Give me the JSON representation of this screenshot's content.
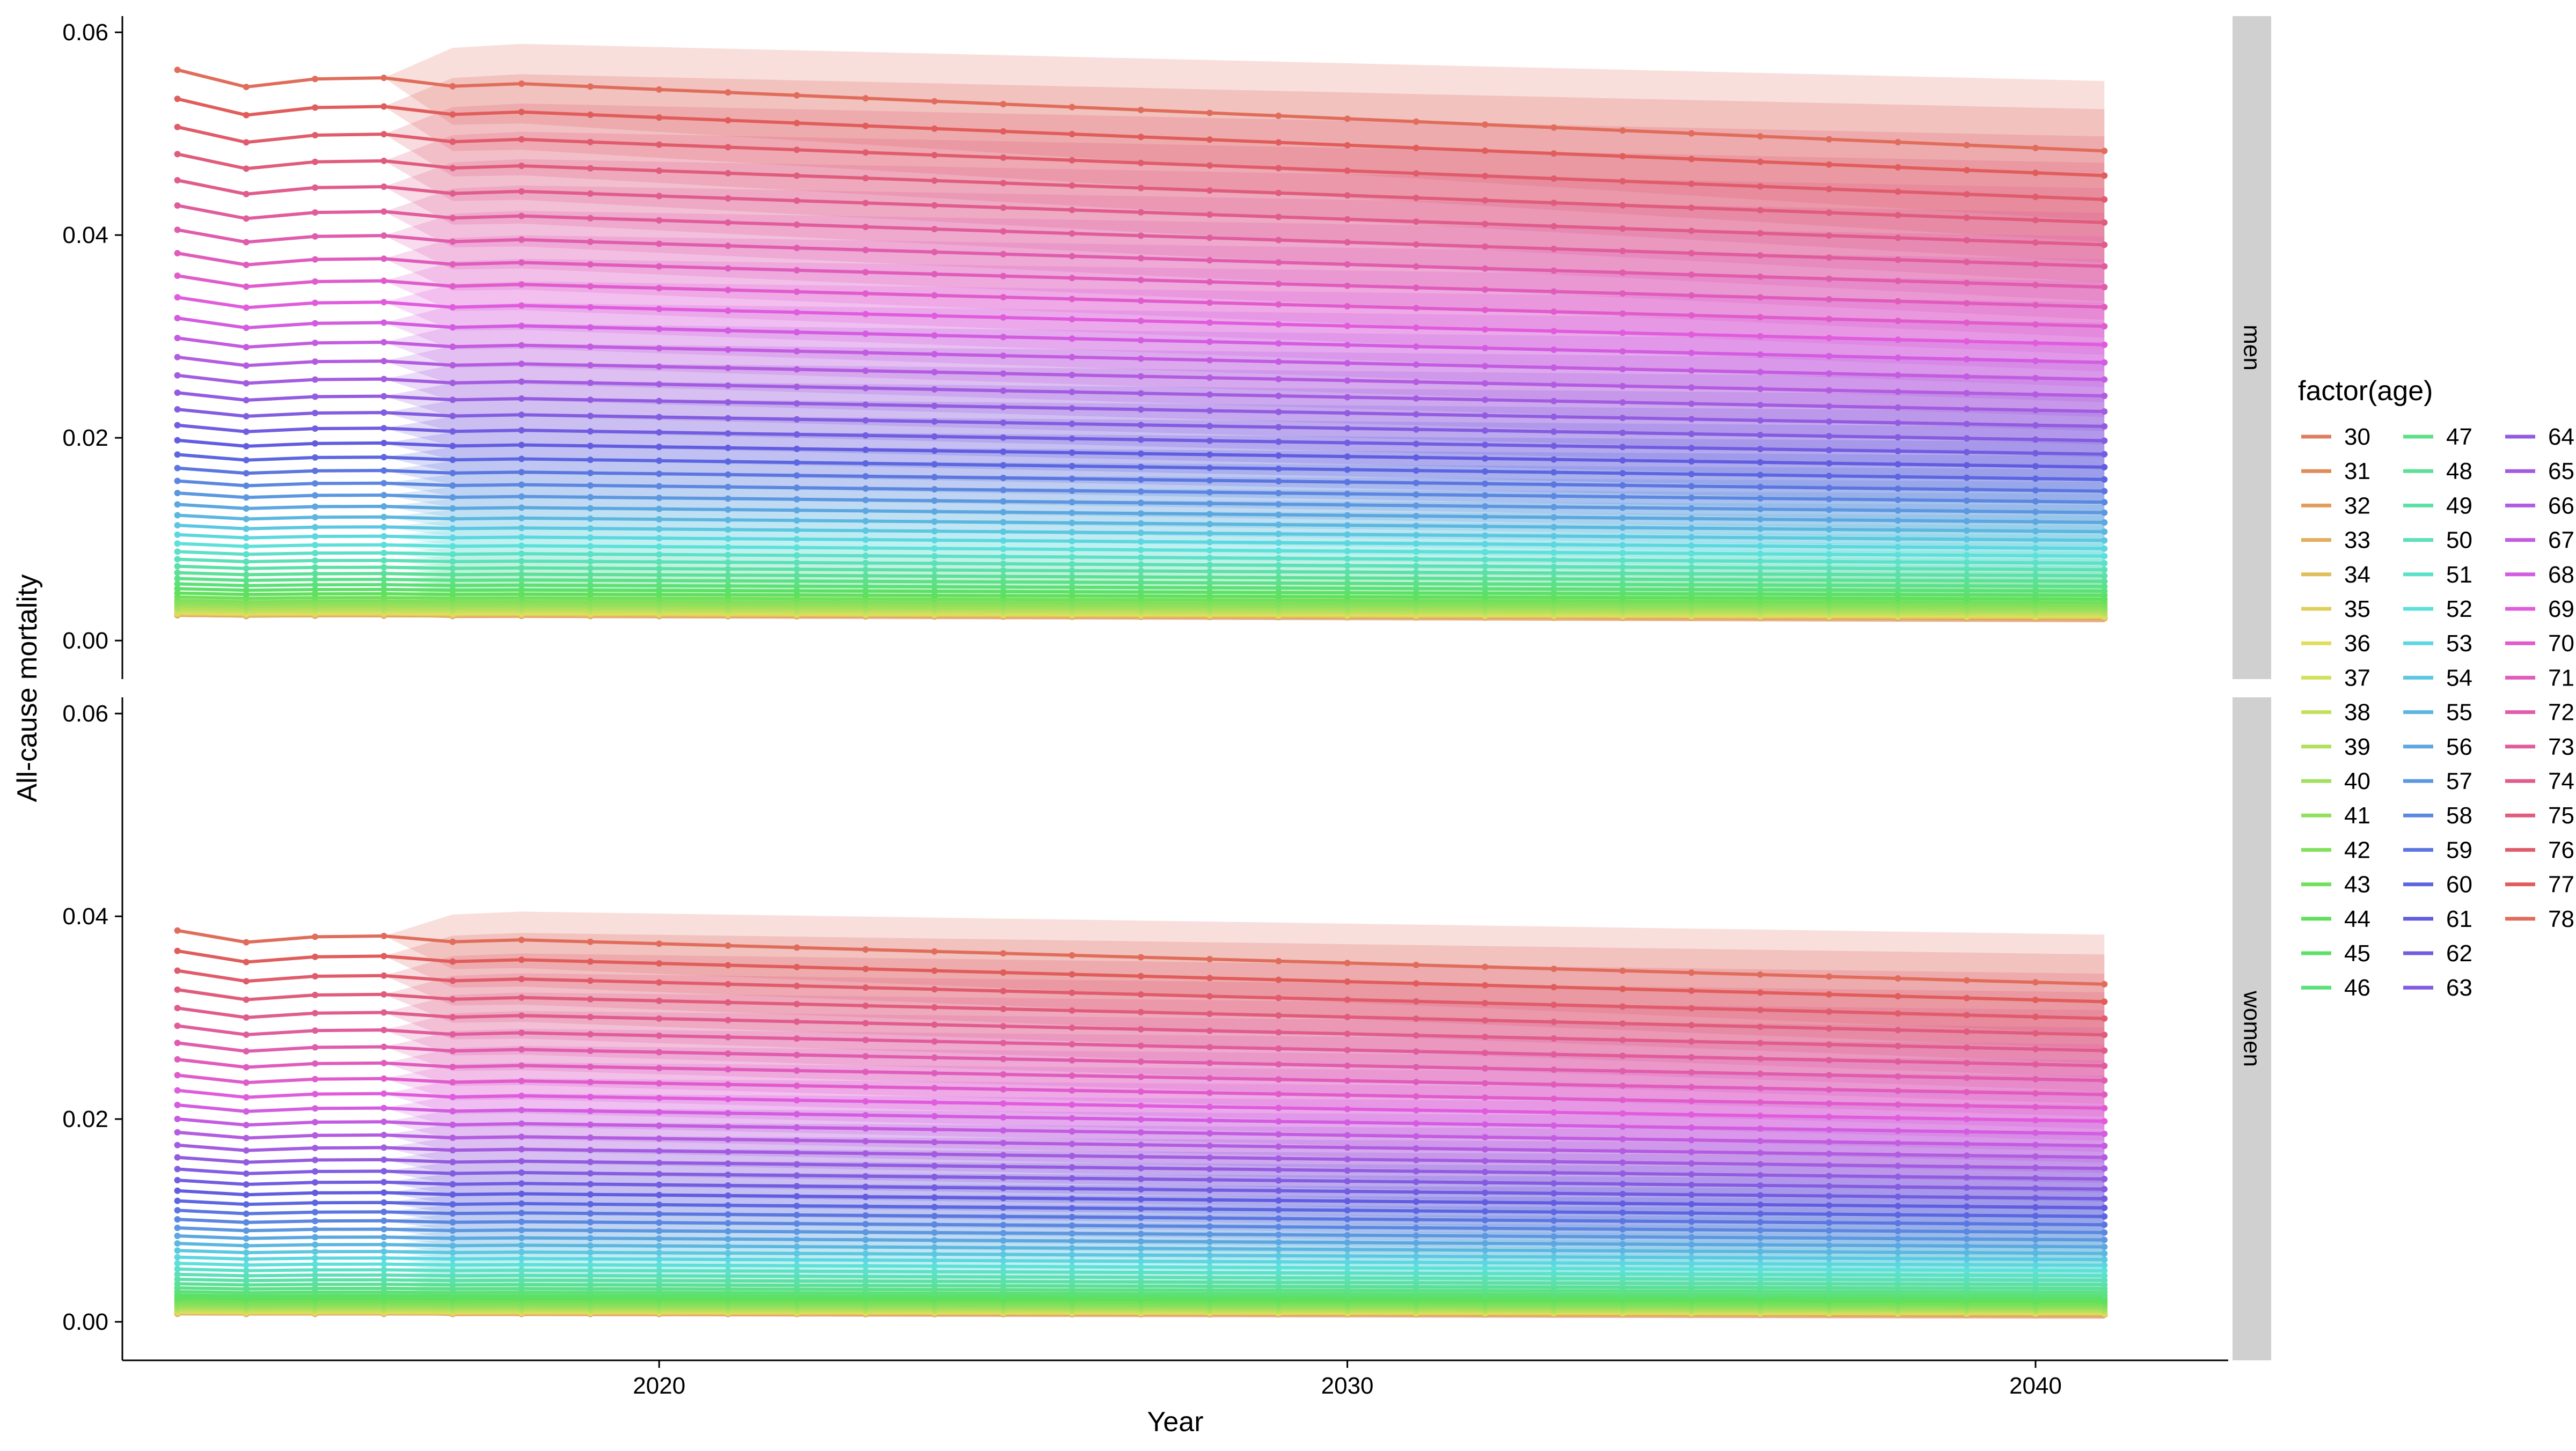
{
  "chart_data": {
    "type": "line",
    "xlabel": "Year",
    "ylabel": "All-cause mortality",
    "xlim": [
      2012.2,
      2042.8
    ],
    "ylim": [
      -0.0038,
      0.0616
    ],
    "x_ticks": [
      2020,
      2030,
      2040
    ],
    "x_tick_labels": [
      "2020",
      "2030",
      "2040"
    ],
    "y_ticks": [
      0.0,
      0.02,
      0.04,
      0.06
    ],
    "y_tick_labels": [
      "0.00",
      "0.02",
      "0.04",
      "0.06"
    ],
    "years": [
      2013,
      2014,
      2015,
      2016,
      2017,
      2018,
      2019,
      2020,
      2021,
      2022,
      2023,
      2024,
      2025,
      2026,
      2027,
      2028,
      2029,
      2030,
      2031,
      2032,
      2033,
      2034,
      2035,
      2036,
      2037,
      2038,
      2039,
      2040,
      2041
    ],
    "projection_start_year": 2016,
    "grid": false,
    "facets": [
      {
        "label": "men",
        "top_2013": 0.0563,
        "top_2041": 0.0483,
        "bottom": 0.0025,
        "ribbon_width_2041": 0.0065
      },
      {
        "label": "women",
        "top_2013": 0.0386,
        "top_2041": 0.0333,
        "bottom": 0.0008,
        "ribbon_width_2041": 0.0045
      }
    ],
    "legend": {
      "title": "factor(age)",
      "position": "right",
      "columns": [
        [
          "30",
          "31",
          "32",
          "33",
          "34",
          "35",
          "36",
          "37",
          "38",
          "39",
          "40",
          "41",
          "42",
          "43",
          "44",
          "45",
          "46"
        ],
        [
          "47",
          "48",
          "49",
          "50",
          "51",
          "52",
          "53",
          "54",
          "55",
          "56",
          "57",
          "58",
          "59",
          "60",
          "61",
          "62",
          "63"
        ],
        [
          "64",
          "65",
          "66",
          "67",
          "68",
          "69",
          "70",
          "71",
          "72",
          "73",
          "74",
          "75",
          "76",
          "77",
          "78"
        ]
      ]
    }
  }
}
